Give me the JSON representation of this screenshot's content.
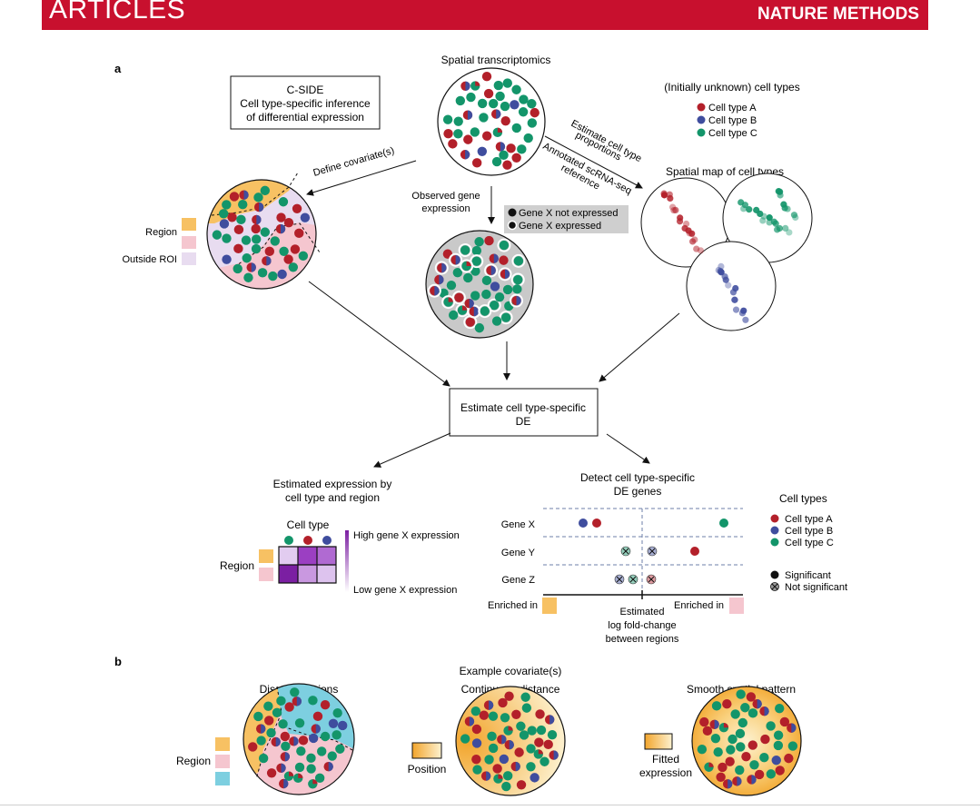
{
  "header": {
    "section": "ARTICLES",
    "journal": "NATURE METHODS"
  },
  "colors": {
    "typeA": "#b3202a",
    "typeB": "#3f4d9e",
    "typeC": "#13956a",
    "region": "#f7c163",
    "outside": "#f5c6cf",
    "lavender": "#e8dcf0",
    "cyan": "#7dcfe0",
    "purpleDark": "#7b1fa2"
  },
  "panel_a": {
    "label": "a",
    "title": "Spatial transcriptomics",
    "cside_box": [
      "C-SIDE",
      "Cell type-specific inference",
      "of differential expression"
    ],
    "define_covariates": "Define covariate(s)",
    "region_label": "Region",
    "outside_label": "Outside ROI",
    "observed_expression": [
      "Observed gene",
      "expression"
    ],
    "gene_legend": [
      "Gene X not expressed",
      "Gene X expressed"
    ],
    "estimate_proportions": [
      "Estimate cell type",
      "proportions"
    ],
    "annotated_reference": [
      "Annotated scRNA-seq",
      "reference"
    ],
    "unknown_types_title": "(Initially unknown) cell types",
    "cell_types": [
      "Cell type A",
      "Cell type B",
      "Cell type C"
    ],
    "spatial_map_title": "Spatial map of cell types",
    "estimate_box": [
      "Estimate cell type-specific",
      "DE"
    ],
    "estimated_expression_title": [
      "Estimated expression by",
      "cell type and region"
    ],
    "cell_type_header": "Cell type",
    "high_expression": "High gene X expression",
    "low_expression": "Low gene X expression",
    "detect_title": [
      "Detect cell type-specific",
      "DE genes"
    ],
    "genes": [
      "Gene X",
      "Gene Y",
      "Gene Z"
    ],
    "cell_types_legend_title": "Cell types",
    "significance": [
      "Significant",
      "Not significant"
    ],
    "enriched_in": "Enriched in",
    "axis_label": [
      "Estimated",
      "log fold-change",
      "between regions"
    ]
  },
  "panel_b": {
    "label": "b",
    "title": "Example covariate(s)",
    "discrete": "Discrete regions",
    "continuous": "Continuous distance",
    "smooth": "Smooth spatial pattern",
    "region_label": "Region",
    "position_label": "Position",
    "fitted_label": [
      "Fitted",
      "expression"
    ]
  }
}
